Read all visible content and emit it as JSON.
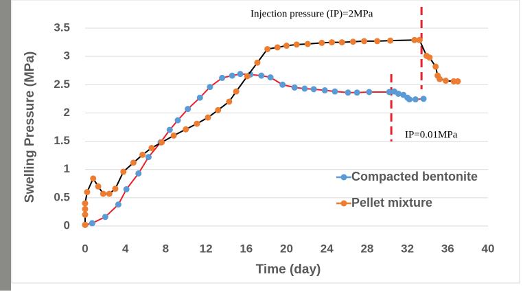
{
  "chart_data": {
    "type": "line",
    "xlabel": "Time (day)",
    "ylabel": "Swelling Pressure (MPa)",
    "xlim": [
      0,
      40
    ],
    "xticks": [
      0,
      4,
      8,
      12,
      16,
      20,
      24,
      28,
      32,
      36,
      40
    ],
    "ylim": [
      0,
      3.5
    ],
    "yticks": [
      0,
      0.5,
      1,
      1.5,
      2,
      2.5,
      3,
      3.5
    ],
    "grid": true,
    "legend": "right",
    "series": [
      {
        "name": "Compacted bentonite",
        "color": "#5b9bd5",
        "line_color": "#e8202a",
        "x": [
          0,
          0.7,
          2,
          3.3,
          4.1,
          5.3,
          6.3,
          7.5,
          8.4,
          9.2,
          10.2,
          11.4,
          12.4,
          13.6,
          14.6,
          15.4,
          16.4,
          17.5,
          18.4,
          19.6,
          20.8,
          21.8,
          22.7,
          23.8,
          24.8,
          26.1,
          27,
          28.2,
          30.2,
          30.7,
          31.1,
          31.6,
          32.0,
          32.2,
          32.8,
          33.6
        ],
        "values": [
          0.02,
          0.05,
          0.16,
          0.38,
          0.65,
          0.93,
          1.22,
          1.48,
          1.7,
          1.87,
          2.07,
          2.27,
          2.46,
          2.62,
          2.66,
          2.69,
          2.68,
          2.66,
          2.63,
          2.5,
          2.45,
          2.43,
          2.42,
          2.4,
          2.38,
          2.36,
          2.36,
          2.37,
          2.37,
          2.38,
          2.34,
          2.32,
          2.27,
          2.24,
          2.24,
          2.25
        ]
      },
      {
        "name": "Pellet mixture",
        "color": "#ed7d31",
        "line_color": "#000000",
        "x": [
          0,
          0,
          0,
          0,
          0.2,
          0.8,
          1.3,
          1.8,
          2.4,
          3.0,
          3.8,
          4.8,
          5.7,
          6.6,
          7.6,
          8.8,
          10.0,
          11.1,
          12.2,
          13.2,
          14.3,
          15.0,
          16.1,
          17.1,
          18.1,
          19.1,
          20,
          21,
          22.1,
          23.5,
          24.5,
          25.5,
          26.6,
          27.7,
          29,
          30.3,
          32.7,
          33.2,
          33.9,
          34.2,
          34.8,
          35.0,
          35.2,
          35.8,
          36.6,
          37
        ],
        "values": [
          0.02,
          0.2,
          0.3,
          0.4,
          0.6,
          0.84,
          0.7,
          0.57,
          0.57,
          0.66,
          0.96,
          1.12,
          1.26,
          1.38,
          1.48,
          1.6,
          1.71,
          1.81,
          1.92,
          2.05,
          2.2,
          2.38,
          2.65,
          2.89,
          3.13,
          3.16,
          3.19,
          3.21,
          3.22,
          3.24,
          3.25,
          3.25,
          3.26,
          3.27,
          3.27,
          3.28,
          3.29,
          3.29,
          3.01,
          2.98,
          2.82,
          2.66,
          2.6,
          2.57,
          2.56,
          2.56
        ]
      }
    ],
    "annotations": [
      {
        "text": "Injection pressure (IP)=2MPa",
        "x": 33.4,
        "color": "#e8202a"
      },
      {
        "text": "IP=0.01MPa",
        "x": 30.4,
        "color": "#e8202a"
      }
    ]
  }
}
